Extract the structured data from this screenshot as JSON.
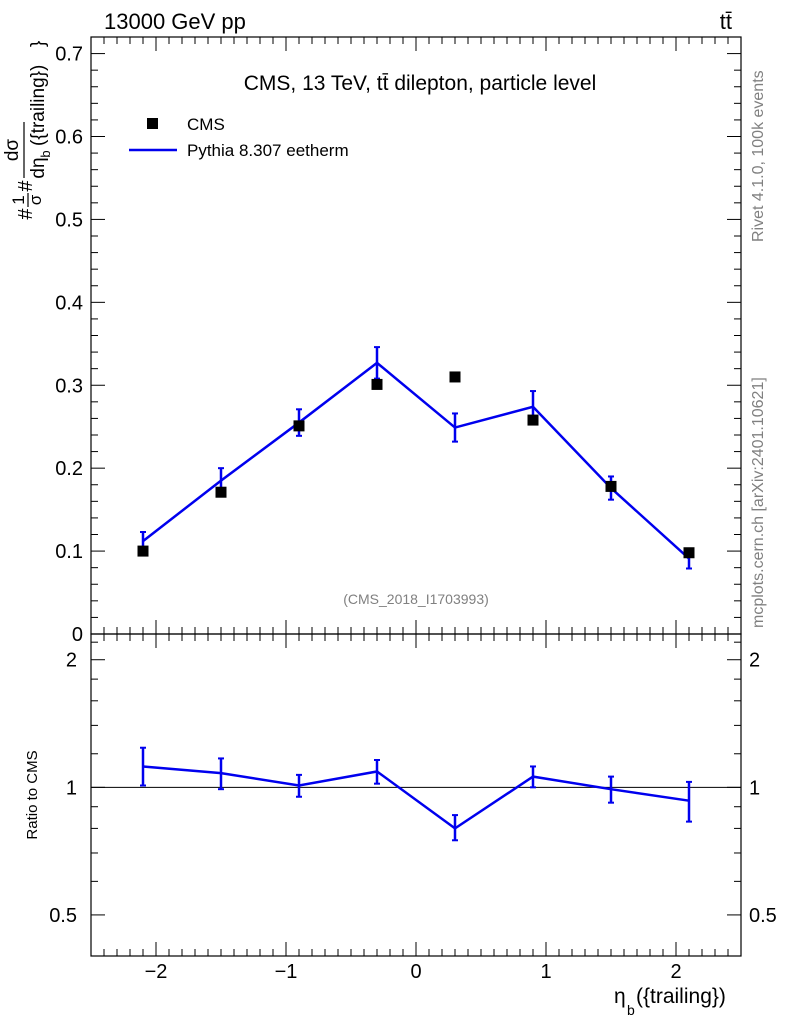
{
  "header": {
    "left": "13000 GeV pp",
    "right": "tt̄"
  },
  "side_labels": {
    "rivet": "Rivet 4.1.0,  100k events",
    "mcplots": "mcplots.cern.ch [arXiv:2401.10621]"
  },
  "colors": {
    "mc": "#0000ee",
    "data": "#000000",
    "grey": "#808080"
  },
  "chart_data": [
    {
      "type": "line",
      "title": "CMS, 13 TeV, tt̄ dilepton, particle level",
      "analysis_id": "(CMS_2018_I1703993)",
      "ylabel_parts": {
        "hash1": "#",
        "one": "1",
        "sigma": "σ",
        "hash2": "#",
        "dsigma": "dσ",
        "deta": "dη",
        "sub": "b",
        "arg": "({trailing})",
        "close": "}"
      },
      "xlabel": "η_b({trailing})",
      "xlim": [
        -2.5,
        2.5
      ],
      "ylim": [
        0,
        0.72
      ],
      "yticks": [
        0,
        0.1,
        0.2,
        0.3,
        0.4,
        0.5,
        0.6,
        0.7
      ],
      "ytick_labels": [
        "0",
        "0.1",
        "0.2",
        "0.3",
        "0.4",
        "0.5",
        "0.6",
        "0.7"
      ],
      "legend": {
        "position": "top-left",
        "entries": [
          "CMS",
          "Pythia 8.307 eetherm"
        ]
      },
      "series": [
        {
          "name": "CMS",
          "style": "markers",
          "x": [
            -2.1,
            -1.5,
            -0.9,
            -0.3,
            0.3,
            0.9,
            1.5,
            2.1
          ],
          "y": [
            0.1,
            0.171,
            0.251,
            0.301,
            0.31,
            0.258,
            0.178,
            0.098
          ]
        },
        {
          "name": "Pythia 8.307 eetherm",
          "style": "line",
          "x": [
            -2.1,
            -1.5,
            -0.9,
            -0.3,
            0.3,
            0.9,
            1.5,
            2.1
          ],
          "y": [
            0.112,
            0.185,
            0.255,
            0.327,
            0.249,
            0.274,
            0.176,
            0.091
          ],
          "err": [
            0.011,
            0.015,
            0.016,
            0.019,
            0.017,
            0.019,
            0.014,
            0.012
          ]
        }
      ]
    },
    {
      "type": "line",
      "ylabel": "Ratio to CMS",
      "xlabel": "η_b({trailing})",
      "xlim": [
        -2.5,
        2.5
      ],
      "ylim": [
        0.4,
        2.3
      ],
      "yscale": "log",
      "yticks": [
        0.5,
        1,
        2
      ],
      "ytick_labels": [
        "0.5",
        "1",
        "2"
      ],
      "xticks": [
        -2,
        -1,
        0,
        1,
        2
      ],
      "xtick_labels": [
        "−2",
        "−1",
        "0",
        "1",
        "2"
      ],
      "reference_line": 1,
      "series": [
        {
          "name": "Pythia 8.307 eetherm / CMS",
          "x": [
            -2.1,
            -1.5,
            -0.9,
            -0.3,
            0.3,
            0.9,
            1.5,
            2.1
          ],
          "y": [
            1.12,
            1.08,
            1.01,
            1.09,
            0.8,
            1.06,
            0.99,
            0.93
          ],
          "err_low": [
            0.11,
            0.09,
            0.06,
            0.07,
            0.05,
            0.06,
            0.07,
            0.1
          ],
          "err_high": [
            0.12,
            0.09,
            0.06,
            0.07,
            0.06,
            0.06,
            0.07,
            0.1
          ]
        }
      ]
    }
  ]
}
